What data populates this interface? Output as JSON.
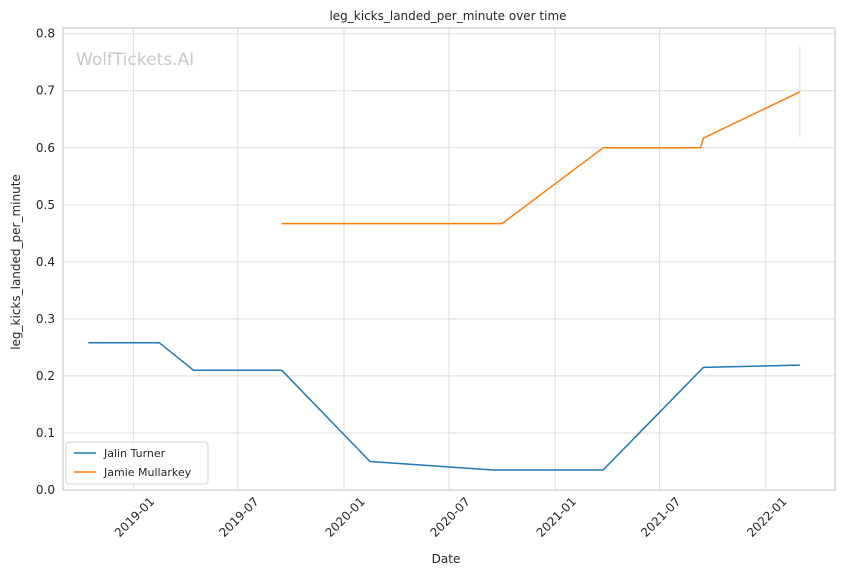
{
  "chart_data": {
    "type": "line",
    "title": "leg_kicks_landed_per_minute over time",
    "xlabel": "Date",
    "ylabel": "leg_kicks_landed_per_minute",
    "watermark": "WolfTickets.AI",
    "xlim": [
      "2018-09-01",
      "2022-05-01"
    ],
    "ylim": [
      0,
      0.81
    ],
    "y_ticks": [
      0.0,
      0.1,
      0.2,
      0.3,
      0.4,
      0.5,
      0.6,
      0.7,
      0.8
    ],
    "y_tick_labels": [
      "0.0",
      "0.1",
      "0.2",
      "0.3",
      "0.4",
      "0.5",
      "0.6",
      "0.7",
      "0.8"
    ],
    "x_ticks": [
      "2019-01-01",
      "2019-07-01",
      "2020-01-01",
      "2020-07-01",
      "2021-01-01",
      "2021-07-01",
      "2022-01-01"
    ],
    "x_tick_labels": [
      "2019-01",
      "2019-07",
      "2020-01",
      "2020-07",
      "2021-01",
      "2021-07",
      "2022-01"
    ],
    "grid": true,
    "legend_position": "lower-left",
    "series": [
      {
        "name": "Jalin Turner",
        "color": "#1f77b4",
        "points": [
          {
            "x": "2018-10-15",
            "y": 0.258
          },
          {
            "x": "2019-02-15",
            "y": 0.258
          },
          {
            "x": "2019-04-15",
            "y": 0.21
          },
          {
            "x": "2019-09-15",
            "y": 0.21
          },
          {
            "x": "2020-02-15",
            "y": 0.05
          },
          {
            "x": "2020-09-15",
            "y": 0.035
          },
          {
            "x": "2021-03-25",
            "y": 0.035
          },
          {
            "x": "2021-09-15",
            "y": 0.215
          },
          {
            "x": "2022-03-01",
            "y": 0.219
          }
        ]
      },
      {
        "name": "Jamie Mullarkey",
        "color": "#ff7f0e",
        "points": [
          {
            "x": "2019-09-15",
            "y": 0.467
          },
          {
            "x": "2020-10-01",
            "y": 0.467
          },
          {
            "x": "2021-03-25",
            "y": 0.6
          },
          {
            "x": "2021-09-10",
            "y": 0.6
          },
          {
            "x": "2021-09-15",
            "y": 0.617
          },
          {
            "x": "2022-03-01",
            "y": 0.698
          }
        ],
        "error_bar": {
          "x": "2022-03-01",
          "low": 0.618,
          "high": 0.778
        }
      }
    ]
  }
}
